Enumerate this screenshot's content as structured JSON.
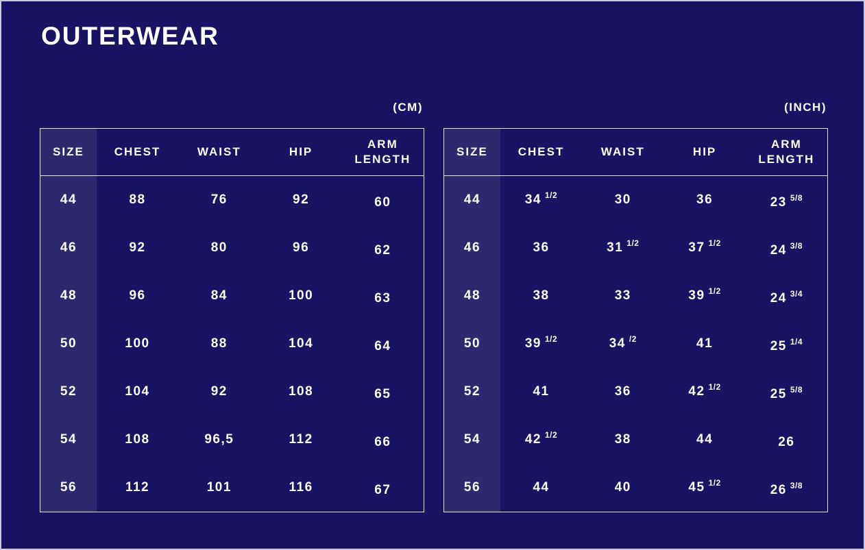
{
  "page_title": "OUTERWEAR",
  "colors": {
    "background": "#1a1262",
    "size_column_highlight": "#2e296d",
    "table_border": "#e9e8f2",
    "text": "#ffffff",
    "page_frame": "#cac8da"
  },
  "chart_data": [
    {
      "type": "table",
      "title": "(CM)",
      "columns": [
        "SIZE",
        "CHEST",
        "WAIST",
        "HIP",
        "ARM LENGTH"
      ],
      "rows": [
        [
          "44",
          "88",
          "76",
          "92",
          "60"
        ],
        [
          "46",
          "92",
          "80",
          "96",
          "62"
        ],
        [
          "48",
          "96",
          "84",
          "100",
          "63"
        ],
        [
          "50",
          "100",
          "88",
          "104",
          "64"
        ],
        [
          "52",
          "104",
          "92",
          "108",
          "65"
        ],
        [
          "54",
          "108",
          "96,5",
          "112",
          "66"
        ],
        [
          "56",
          "112",
          "101",
          "116",
          "67"
        ]
      ]
    },
    {
      "type": "table",
      "title": "(INCH)",
      "columns": [
        "SIZE",
        "CHEST",
        "WAIST",
        "HIP",
        "ARM LENGTH"
      ],
      "rows": [
        [
          "44",
          "34 1/2",
          "30",
          "36",
          "23 5/8"
        ],
        [
          "46",
          "36",
          "31 1/2",
          "37 1/2",
          "24 3/8"
        ],
        [
          "48",
          "38",
          "33",
          "39 1/2",
          "24 3/4"
        ],
        [
          "50",
          "39 1/2",
          "34 /2",
          "41",
          "25 1/4"
        ],
        [
          "52",
          "41",
          "36",
          "42 1/2",
          "25 5/8"
        ],
        [
          "54",
          "42 1/2",
          "38",
          "44",
          "26"
        ],
        [
          "56",
          "44",
          "40",
          "45 1/2",
          "26 3/8"
        ]
      ]
    }
  ]
}
